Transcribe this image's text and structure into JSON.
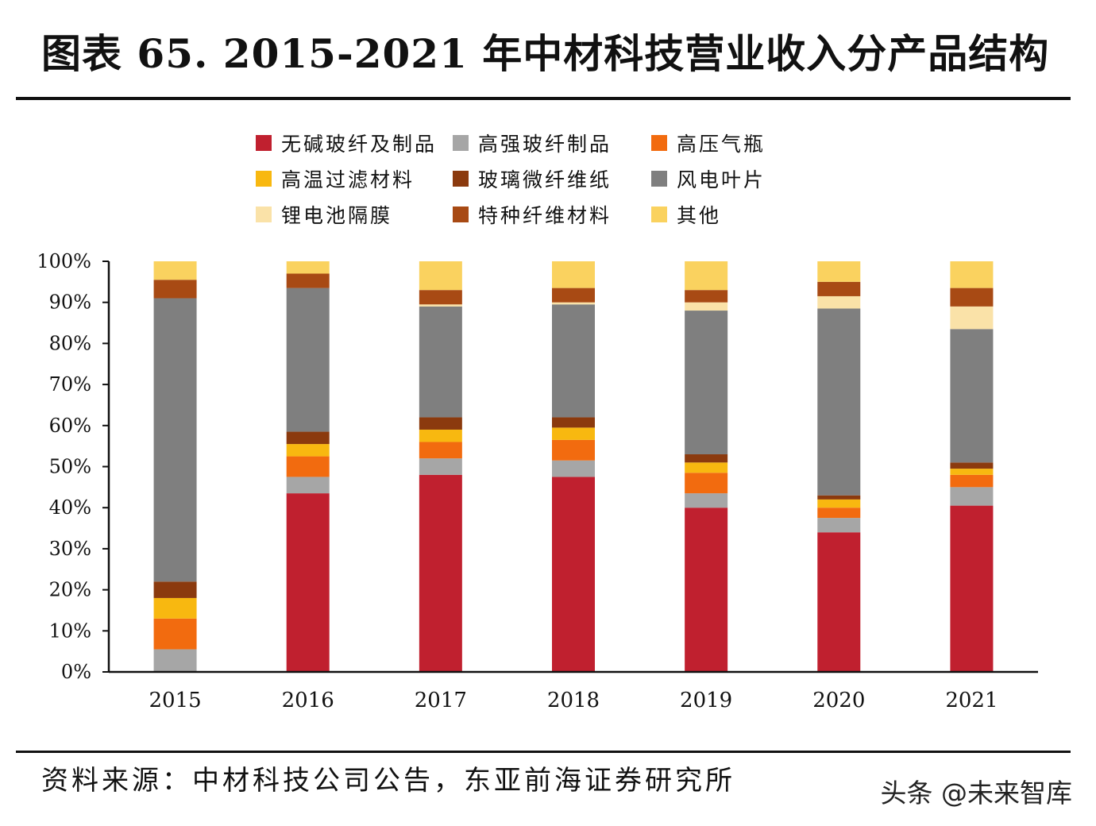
{
  "title": "图表 65. 2015-2021 年中材科技营业收入分产品结构",
  "source": "资料来源：中材科技公司公告，东亚前海证券研究所",
  "watermark": "头条 @未来智库",
  "chart_data": {
    "type": "bar",
    "stacked": true,
    "categories": [
      "2015",
      "2016",
      "2017",
      "2018",
      "2019",
      "2020",
      "2021"
    ],
    "ylim": [
      0,
      100
    ],
    "yticks": [
      "0%",
      "10%",
      "20%",
      "30%",
      "40%",
      "50%",
      "60%",
      "70%",
      "80%",
      "90%",
      "100%"
    ],
    "legend_position": "top",
    "series": [
      {
        "name": "无碱玻纤及制品",
        "color": "#c0202f",
        "values": [
          0,
          43.5,
          48,
          47.5,
          40,
          34,
          40.5
        ]
      },
      {
        "name": "高强玻纤制品",
        "color": "#a6a6a6",
        "values": [
          5.5,
          4,
          4,
          4,
          3.5,
          3.5,
          4.5
        ]
      },
      {
        "name": "高压气瓶",
        "color": "#f26b0f",
        "values": [
          7.5,
          5,
          4,
          5,
          5,
          2.5,
          3
        ]
      },
      {
        "name": "高温过滤材料",
        "color": "#f8b810",
        "values": [
          5,
          3,
          3,
          3,
          2.5,
          2,
          1.5
        ]
      },
      {
        "name": "玻璃微纤维纸",
        "color": "#8b3a0e",
        "values": [
          4,
          3,
          3,
          2.5,
          2,
          1,
          1.5
        ]
      },
      {
        "name": "风电叶片",
        "color": "#7f7f7f",
        "values": [
          69,
          35,
          27,
          27.5,
          35,
          45.5,
          32.5
        ]
      },
      {
        "name": "锂电池隔膜",
        "color": "#fae2a8",
        "values": [
          0,
          0,
          0.5,
          0.5,
          2,
          3,
          5.5
        ]
      },
      {
        "name": "特种纤维材料",
        "color": "#a84a14",
        "values": [
          4.5,
          3.5,
          3.5,
          3.5,
          3,
          3.5,
          4.5
        ]
      },
      {
        "name": "其他",
        "color": "#fad25f",
        "values": [
          4.5,
          3,
          7,
          6.5,
          7,
          5,
          6.5
        ]
      }
    ]
  }
}
